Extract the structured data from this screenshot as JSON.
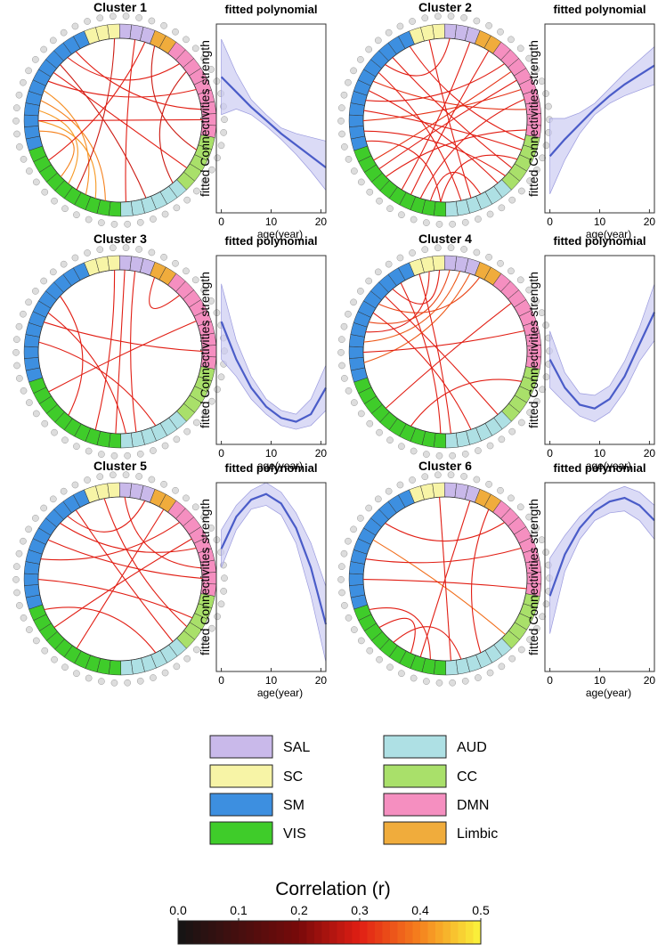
{
  "networks": [
    {
      "name": "SC",
      "color": "#f7f4a6",
      "nodes": 3
    },
    {
      "name": "SAL",
      "color": "#c9b9ea",
      "nodes": 3
    },
    {
      "name": "Limbic",
      "color": "#f0ac3c",
      "nodes": 2
    },
    {
      "name": "DMN",
      "color": "#f58fc0",
      "nodes": 9
    },
    {
      "name": "CC",
      "color": "#a9e06a",
      "nodes": 5
    },
    {
      "name": "AUD",
      "color": "#aee0e4",
      "nodes": 6
    },
    {
      "name": "VIS",
      "color": "#3fcc2a",
      "nodes": 10
    },
    {
      "name": "SM",
      "color": "#3d8fe0",
      "nodes": 12
    }
  ],
  "clusters": [
    {
      "title": "Cluster 1",
      "links": [
        [
          40,
          30,
          0.42
        ],
        [
          41,
          33,
          0.42
        ],
        [
          42,
          29,
          0.4
        ],
        [
          43,
          31,
          0.41
        ],
        [
          39,
          34,
          0.4
        ],
        [
          44,
          12,
          0.3
        ],
        [
          45,
          20,
          0.3
        ],
        [
          46,
          25,
          0.28
        ],
        [
          47,
          9,
          0.3
        ],
        [
          40,
          15,
          0.3
        ],
        [
          2,
          32,
          0.28
        ],
        [
          4,
          27,
          0.3
        ],
        [
          6,
          18,
          0.28
        ],
        [
          10,
          22,
          0.28
        ],
        [
          48,
          14,
          0.3
        ],
        [
          5,
          36,
          0.3
        ]
      ]
    },
    {
      "title": "Cluster 2",
      "links": [
        [
          40,
          12,
          0.32
        ],
        [
          41,
          18,
          0.3
        ],
        [
          42,
          9,
          0.3
        ],
        [
          43,
          22,
          0.3
        ],
        [
          44,
          14,
          0.32
        ],
        [
          45,
          26,
          0.3
        ],
        [
          46,
          3,
          0.3
        ],
        [
          47,
          20,
          0.3
        ],
        [
          38,
          28,
          0.3
        ],
        [
          36,
          10,
          0.32
        ],
        [
          34,
          16,
          0.3
        ],
        [
          32,
          5,
          0.3
        ],
        [
          30,
          13,
          0.3
        ],
        [
          29,
          24,
          0.3
        ],
        [
          28,
          19,
          0.3
        ],
        [
          1,
          25,
          0.3
        ],
        [
          7,
          31,
          0.3
        ],
        [
          11,
          35,
          0.3
        ],
        [
          49,
          17,
          0.3
        ],
        [
          39,
          21,
          0.3
        ]
      ]
    },
    {
      "title": "Cluster 3",
      "links": [
        [
          41,
          24,
          0.3
        ],
        [
          44,
          27,
          0.3
        ],
        [
          3,
          28,
          0.3
        ],
        [
          4,
          26,
          0.3
        ],
        [
          46,
          33,
          0.3
        ],
        [
          36,
          12,
          0.3
        ],
        [
          43,
          15,
          0.3
        ],
        [
          2,
          30,
          0.3
        ],
        [
          6,
          9,
          0.3
        ]
      ]
    },
    {
      "title": "Cluster 4",
      "links": [
        [
          39,
          5,
          0.36
        ],
        [
          41,
          4,
          0.36
        ],
        [
          43,
          3,
          0.34
        ],
        [
          45,
          6,
          0.34
        ],
        [
          47,
          2,
          0.3
        ],
        [
          42,
          1,
          0.3
        ],
        [
          44,
          25,
          0.3
        ],
        [
          46,
          22,
          0.3
        ],
        [
          40,
          13,
          0.3
        ],
        [
          34,
          10,
          0.3
        ],
        [
          31,
          18,
          0.3
        ],
        [
          48,
          28,
          0.3
        ],
        [
          0,
          27,
          0.3
        ]
      ]
    },
    {
      "title": "Cluster 5",
      "links": [
        [
          42,
          9,
          0.3
        ],
        [
          44,
          15,
          0.3
        ],
        [
          46,
          12,
          0.3
        ],
        [
          47,
          5,
          0.3
        ],
        [
          1,
          20,
          0.3
        ],
        [
          37,
          24,
          0.3
        ],
        [
          35,
          11,
          0.3
        ],
        [
          40,
          19,
          0.3
        ],
        [
          3,
          14,
          0.3
        ],
        [
          32,
          7,
          0.3
        ],
        [
          48,
          22,
          0.3
        ]
      ]
    },
    {
      "title": "Cluster 6",
      "links": [
        [
          44,
          21,
          0.38
        ],
        [
          42,
          12,
          0.3
        ],
        [
          40,
          16,
          0.3
        ],
        [
          37,
          29,
          0.3
        ],
        [
          35,
          31,
          0.3
        ],
        [
          33,
          26,
          0.3
        ],
        [
          46,
          9,
          0.3
        ],
        [
          5,
          30,
          0.3
        ],
        [
          7,
          24,
          0.3
        ],
        [
          2,
          27,
          0.3
        ]
      ]
    }
  ],
  "chart_data": [
    {
      "type": "line",
      "title": "fitted polynomial",
      "x_label": "age(year)",
      "y_label": "fitted Connectivities strength",
      "xlim": [
        -1,
        21
      ],
      "xticks": [
        0,
        10,
        20
      ],
      "ylim": [
        0,
        1
      ],
      "color": "#4a5cc8",
      "x": [
        0,
        3,
        6,
        9,
        12,
        15,
        18,
        21
      ],
      "values": [
        0.72,
        0.64,
        0.56,
        0.49,
        0.42,
        0.36,
        0.3,
        0.24
      ],
      "band_low": [
        0.52,
        0.55,
        0.52,
        0.46,
        0.39,
        0.31,
        0.22,
        0.12
      ],
      "band_high": [
        0.92,
        0.74,
        0.6,
        0.52,
        0.45,
        0.42,
        0.4,
        0.38
      ]
    },
    {
      "type": "line",
      "title": "fitted polynomial",
      "x_label": "age(year)",
      "y_label": "fitted Connectivities strength",
      "xlim": [
        -1,
        21
      ],
      "xticks": [
        0,
        10,
        20
      ],
      "ylim": [
        0,
        1
      ],
      "color": "#4a5cc8",
      "x": [
        0,
        3,
        6,
        9,
        12,
        15,
        18,
        21
      ],
      "values": [
        0.3,
        0.39,
        0.47,
        0.55,
        0.62,
        0.68,
        0.73,
        0.78
      ],
      "band_low": [
        0.1,
        0.28,
        0.42,
        0.52,
        0.58,
        0.62,
        0.65,
        0.68
      ],
      "band_high": [
        0.5,
        0.5,
        0.53,
        0.58,
        0.66,
        0.74,
        0.81,
        0.88
      ]
    },
    {
      "type": "line",
      "title": "fitted polynomial",
      "x_label": "age(year)",
      "y_label": "fitted Connectivities strength",
      "xlim": [
        -1,
        21
      ],
      "xticks": [
        0,
        10,
        20
      ],
      "ylim": [
        0,
        1
      ],
      "color": "#4a5cc8",
      "x": [
        0,
        3,
        6,
        9,
        12,
        15,
        18,
        21
      ],
      "values": [
        0.65,
        0.45,
        0.3,
        0.2,
        0.14,
        0.12,
        0.16,
        0.3
      ],
      "band_low": [
        0.45,
        0.36,
        0.24,
        0.16,
        0.1,
        0.08,
        0.1,
        0.18
      ],
      "band_high": [
        0.85,
        0.55,
        0.36,
        0.24,
        0.18,
        0.16,
        0.24,
        0.42
      ]
    },
    {
      "type": "line",
      "title": "fitted polynomial",
      "x_label": "age(year)",
      "y_label": "fitted Connectivities strength",
      "xlim": [
        -1,
        21
      ],
      "xticks": [
        0,
        10,
        20
      ],
      "ylim": [
        0,
        1
      ],
      "color": "#4a5cc8",
      "x": [
        0,
        3,
        6,
        9,
        12,
        15,
        18,
        21
      ],
      "values": [
        0.45,
        0.3,
        0.21,
        0.19,
        0.24,
        0.36,
        0.53,
        0.7
      ],
      "band_low": [
        0.3,
        0.22,
        0.15,
        0.12,
        0.17,
        0.28,
        0.44,
        0.55
      ],
      "band_high": [
        0.6,
        0.38,
        0.27,
        0.26,
        0.31,
        0.44,
        0.62,
        0.85
      ]
    },
    {
      "type": "line",
      "title": "fitted polynomial",
      "x_label": "age(year)",
      "y_label": "fitted Connectivities strength",
      "xlim": [
        -1,
        21
      ],
      "xticks": [
        0,
        10,
        20
      ],
      "ylim": [
        0,
        1
      ],
      "color": "#4a5cc8",
      "x": [
        0,
        3,
        6,
        9,
        12,
        15,
        18,
        21
      ],
      "values": [
        0.65,
        0.82,
        0.91,
        0.94,
        0.89,
        0.76,
        0.55,
        0.25
      ],
      "band_low": [
        0.55,
        0.75,
        0.86,
        0.88,
        0.83,
        0.68,
        0.4,
        0.05
      ],
      "band_high": [
        0.75,
        0.88,
        0.96,
        1.0,
        0.95,
        0.84,
        0.68,
        0.45
      ]
    },
    {
      "type": "line",
      "title": "fitted polynomial",
      "x_label": "age(year)",
      "y_label": "fitted Connectivities strength",
      "xlim": [
        -1,
        21
      ],
      "xticks": [
        0,
        10,
        20
      ],
      "ylim": [
        0,
        1
      ],
      "color": "#4a5cc8",
      "x": [
        0,
        3,
        6,
        9,
        12,
        15,
        18,
        21
      ],
      "values": [
        0.4,
        0.62,
        0.76,
        0.85,
        0.9,
        0.92,
        0.88,
        0.8
      ],
      "band_low": [
        0.2,
        0.53,
        0.7,
        0.8,
        0.84,
        0.85,
        0.8,
        0.7
      ],
      "band_high": [
        0.6,
        0.72,
        0.82,
        0.89,
        0.95,
        0.98,
        0.95,
        0.88
      ]
    }
  ],
  "colorbar": {
    "title": "Correlation (r)",
    "lim": [
      0,
      0.5
    ],
    "ticks": [
      {
        "value": 0,
        "label": "0.0"
      },
      0.1,
      0.2,
      0.3,
      0.4,
      0.5
    ]
  }
}
